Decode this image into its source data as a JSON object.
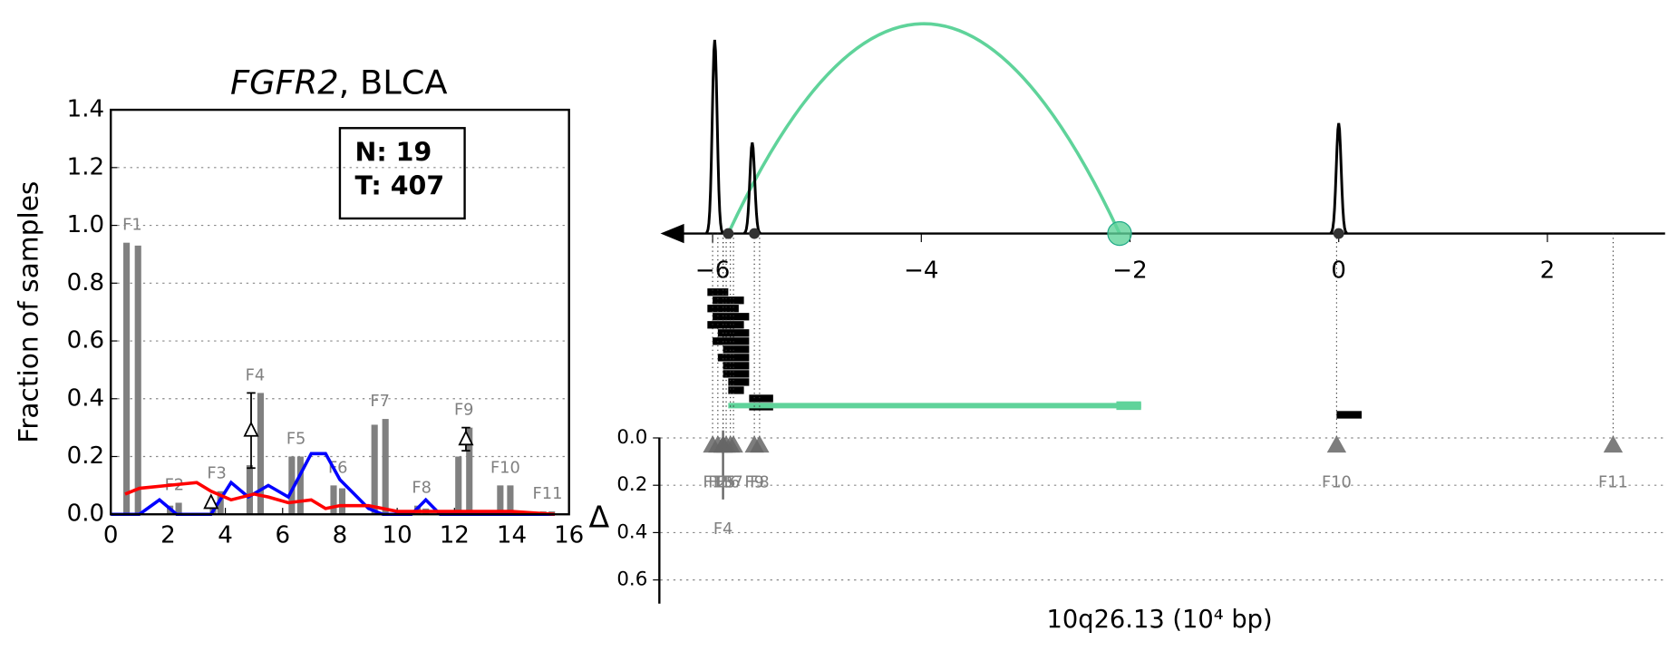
{
  "chart_data": [
    {
      "type": "bar",
      "title": [
        "FGFR2",
        ", BLCA"
      ],
      "ylabel": "Fraction of samples",
      "annotation": [
        "N: 19",
        "T: 407"
      ],
      "xlim": [
        0,
        16
      ],
      "xticks": [
        0,
        2,
        4,
        6,
        8,
        10,
        12,
        14,
        16
      ],
      "ylim": [
        0,
        1.4
      ],
      "yticks": [
        {
          "value": 0,
          "label": "0.0"
        },
        0.2,
        0.4,
        0.6,
        0.8,
        {
          "value": 1,
          "label": "1.0"
        },
        1.2,
        1.4
      ],
      "grid": true,
      "color": "#808080",
      "features": [
        {
          "label": "F1",
          "x": [
            0.55,
            0.95
          ],
          "values": [
            0.94,
            0.93
          ]
        },
        {
          "label": "F2",
          "x": [
            2.07,
            2.37
          ],
          "values": [
            0.03,
            0.04
          ]
        },
        {
          "label": "F3",
          "x": [
            3.57,
            3.83
          ],
          "values": [
            0.04,
            0.08
          ]
        },
        {
          "label": "F4",
          "x": [
            4.85,
            5.23
          ],
          "values": [
            0.17,
            0.42
          ]
        },
        {
          "label": "F5",
          "x": [
            6.32,
            6.62
          ],
          "values": [
            0.2,
            0.2
          ]
        },
        {
          "label": "F6",
          "x": [
            7.78,
            8.08
          ],
          "values": [
            0.1,
            0.09
          ]
        },
        {
          "label": "F7",
          "x": [
            9.21,
            9.59
          ],
          "values": [
            0.31,
            0.33
          ]
        },
        {
          "label": "F8",
          "x": [
            10.71,
            11.0
          ],
          "values": [
            0.03,
            0.02
          ]
        },
        {
          "label": "F9",
          "x": [
            12.14,
            12.52
          ],
          "values": [
            0.2,
            0.3
          ]
        },
        {
          "label": "F10",
          "x": [
            13.6,
            13.95
          ],
          "values": [
            0.1,
            0.1
          ]
        },
        {
          "label": "F11",
          "x": [
            15.1,
            15.4
          ],
          "values": [
            0.01,
            0.01
          ]
        }
      ],
      "series": [
        {
          "color": "#0000ff",
          "x": [
            0,
            1,
            1.7,
            2.3,
            3.5,
            4.2,
            4.8,
            5.5,
            6.2,
            7.0,
            7.5,
            8.0,
            8.5,
            9.0,
            9.5,
            10.5,
            11.0,
            11.5,
            15.5
          ],
          "values": [
            0,
            0,
            0.05,
            0,
            0,
            0.11,
            0.06,
            0.1,
            0.06,
            0.21,
            0.21,
            0.12,
            0.07,
            0.02,
            0,
            0,
            0.05,
            0,
            0
          ]
        },
        {
          "color": "#ff0000",
          "x": [
            0.5,
            1,
            2,
            3,
            3.5,
            4.2,
            5,
            5.5,
            6.2,
            7,
            7.5,
            8,
            9,
            10,
            12,
            14,
            15.5
          ],
          "values": [
            0.07,
            0.09,
            0.1,
            0.11,
            0.08,
            0.05,
            0.07,
            0.06,
            0.04,
            0.05,
            0.02,
            0.03,
            0.03,
            0.01,
            0.01,
            0.01,
            0
          ]
        }
      ],
      "markers": {
        "x": [
          3.5,
          4.9,
          12.4
        ],
        "values": [
          0.04,
          0.29,
          0.26
        ],
        "errors": [
          0,
          0.13,
          0.04
        ]
      }
    },
    {
      "type": "genome",
      "xlabel": "10q26.13 (10⁴ bp)",
      "xlim": [
        -6.5,
        3.2
      ],
      "xticks": [
        {
          "value": -6,
          "label": "−6"
        },
        {
          "value": -4,
          "label": "−4"
        },
        {
          "value": -2,
          "label": "−2"
        },
        0,
        2
      ],
      "peaks": {
        "x": [
          -5.98,
          -5.62,
          0
        ],
        "values": [
          1.0,
          0.47,
          0.57
        ]
      },
      "junctions": [
        -5.85,
        -5.6,
        0
      ],
      "fusion": {
        "color": "#5fd39a",
        "x": [
          -5.85,
          -2.1
        ]
      },
      "reads": {
        "start": [
          -6.05,
          -6.0,
          -6.05,
          -6.0,
          -6.05,
          -5.95,
          -6.0,
          -5.9,
          -5.95,
          -5.9,
          -5.9,
          -5.85,
          -5.85,
          -5.65,
          -5.65,
          -0.02
        ],
        "end": [
          -5.85,
          -5.7,
          -5.75,
          -5.65,
          -5.7,
          -5.65,
          -5.65,
          -5.65,
          -5.65,
          -5.65,
          -5.65,
          -5.65,
          -5.7,
          -5.42,
          -5.42,
          0.22
        ]
      },
      "ylabel": "Δ",
      "ylim": [
        0,
        0.7
      ],
      "yticks": [
        {
          "value": 0,
          "label": "0.0"
        },
        0.2,
        0.4,
        0.6
      ],
      "grid": true,
      "features": {
        "labels": [
          "F1",
          "F2",
          "F3",
          "F4",
          "F5",
          "F6",
          "F7",
          "F8",
          "F9",
          "F10",
          "F11"
        ],
        "x": [
          -6.0,
          -5.95,
          -5.9,
          -5.9,
          -5.87,
          -5.83,
          -5.8,
          -5.55,
          -5.6,
          -0.02,
          2.63
        ],
        "values": [
          0.03,
          0.03,
          0.03,
          0.03,
          0.03,
          0.03,
          0.03,
          0.03,
          0.03,
          0.03,
          0.03
        ],
        "errors": [
          0,
          0,
          0,
          0.23,
          0,
          0,
          0,
          0,
          0,
          0,
          0
        ]
      }
    }
  ]
}
